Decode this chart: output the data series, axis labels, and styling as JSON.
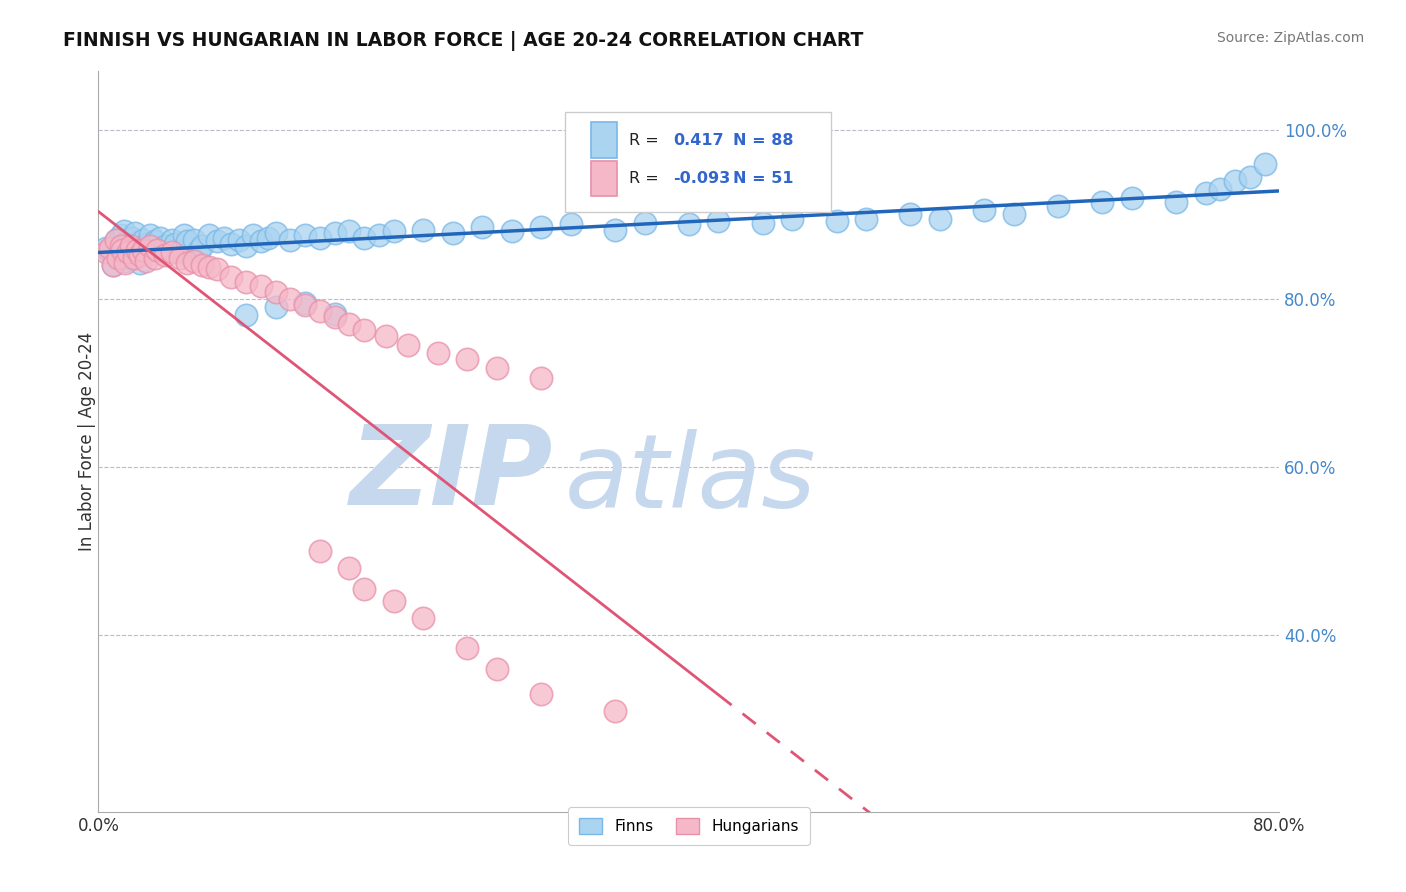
{
  "title": "FINNISH VS HUNGARIAN IN LABOR FORCE | AGE 20-24 CORRELATION CHART",
  "source": "Source: ZipAtlas.com",
  "ylabel": "In Labor Force | Age 20-24",
  "xlim": [
    0.0,
    0.8
  ],
  "ylim": [
    0.19,
    1.07
  ],
  "finn_color": "#aad4f0",
  "hung_color": "#f5b8c8",
  "finn_edge": "#7ab8e8",
  "hung_edge": "#e890aa",
  "finn_line_color": "#2266bb",
  "hung_line_color": "#e05575",
  "watermark_zip": "ZIP",
  "watermark_atlas": "atlas",
  "watermark_color": "#c5d8ed",
  "legend_R_finn": "0.417",
  "legend_N_finn": "88",
  "legend_R_hung": "-0.093",
  "legend_N_hung": "51",
  "finn_scatter_x": [
    0.005,
    0.008,
    0.01,
    0.012,
    0.013,
    0.015,
    0.015,
    0.016,
    0.017,
    0.018,
    0.019,
    0.02,
    0.021,
    0.022,
    0.022,
    0.023,
    0.024,
    0.025,
    0.025,
    0.027,
    0.028,
    0.03,
    0.031,
    0.033,
    0.035,
    0.036,
    0.038,
    0.04,
    0.042,
    0.045,
    0.048,
    0.05,
    0.052,
    0.055,
    0.058,
    0.06,
    0.065,
    0.068,
    0.07,
    0.075,
    0.08,
    0.085,
    0.09,
    0.095,
    0.1,
    0.105,
    0.11,
    0.115,
    0.12,
    0.13,
    0.14,
    0.15,
    0.16,
    0.17,
    0.18,
    0.19,
    0.2,
    0.22,
    0.24,
    0.26,
    0.28,
    0.3,
    0.32,
    0.35,
    0.37,
    0.4,
    0.42,
    0.45,
    0.47,
    0.5,
    0.52,
    0.55,
    0.57,
    0.6,
    0.62,
    0.65,
    0.68,
    0.7,
    0.73,
    0.75,
    0.76,
    0.77,
    0.78,
    0.79,
    0.1,
    0.12,
    0.14,
    0.16
  ],
  "finn_scatter_y": [
    0.86,
    0.855,
    0.84,
    0.87,
    0.85,
    0.875,
    0.862,
    0.858,
    0.88,
    0.845,
    0.865,
    0.87,
    0.855,
    0.86,
    0.848,
    0.872,
    0.858,
    0.865,
    0.878,
    0.86,
    0.842,
    0.87,
    0.855,
    0.865,
    0.875,
    0.86,
    0.868,
    0.858,
    0.872,
    0.862,
    0.858,
    0.87,
    0.865,
    0.855,
    0.875,
    0.868,
    0.87,
    0.858,
    0.862,
    0.875,
    0.868,
    0.872,
    0.865,
    0.87,
    0.862,
    0.875,
    0.868,
    0.872,
    0.878,
    0.87,
    0.875,
    0.872,
    0.878,
    0.88,
    0.872,
    0.876,
    0.88,
    0.882,
    0.878,
    0.885,
    0.88,
    0.885,
    0.888,
    0.882,
    0.89,
    0.888,
    0.892,
    0.89,
    0.895,
    0.892,
    0.895,
    0.9,
    0.895,
    0.905,
    0.9,
    0.91,
    0.915,
    0.92,
    0.915,
    0.925,
    0.93,
    0.94,
    0.945,
    0.96,
    0.78,
    0.79,
    0.795,
    0.782
  ],
  "hung_scatter_x": [
    0.005,
    0.008,
    0.01,
    0.012,
    0.013,
    0.015,
    0.016,
    0.018,
    0.02,
    0.022,
    0.024,
    0.026,
    0.028,
    0.03,
    0.032,
    0.035,
    0.038,
    0.04,
    0.045,
    0.05,
    0.055,
    0.06,
    0.065,
    0.07,
    0.075,
    0.08,
    0.09,
    0.1,
    0.11,
    0.12,
    0.13,
    0.14,
    0.15,
    0.16,
    0.17,
    0.18,
    0.195,
    0.21,
    0.23,
    0.25,
    0.27,
    0.3,
    0.15,
    0.17,
    0.18,
    0.2,
    0.22,
    0.25,
    0.27,
    0.3,
    0.35
  ],
  "hung_scatter_y": [
    0.855,
    0.86,
    0.84,
    0.87,
    0.848,
    0.862,
    0.858,
    0.842,
    0.855,
    0.862,
    0.848,
    0.858,
    0.852,
    0.858,
    0.845,
    0.862,
    0.848,
    0.858,
    0.852,
    0.855,
    0.848,
    0.842,
    0.845,
    0.84,
    0.838,
    0.835,
    0.825,
    0.82,
    0.815,
    0.808,
    0.8,
    0.792,
    0.785,
    0.778,
    0.77,
    0.762,
    0.755,
    0.745,
    0.735,
    0.728,
    0.718,
    0.705,
    0.5,
    0.48,
    0.455,
    0.44,
    0.42,
    0.385,
    0.36,
    0.33,
    0.31
  ],
  "background_color": "#ffffff",
  "grid_color": "#bbbbcc"
}
